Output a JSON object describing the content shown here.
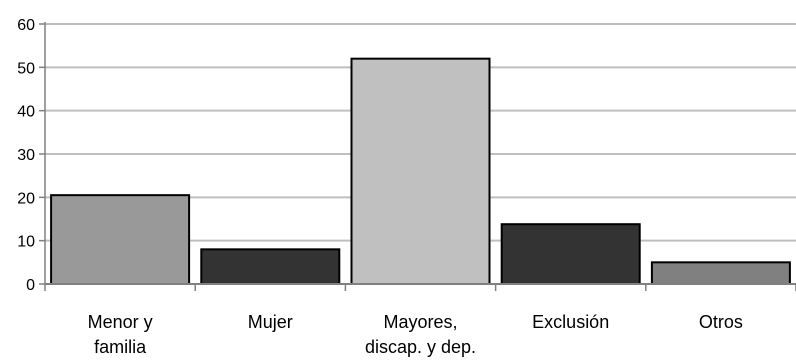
{
  "chart_data": {
    "type": "bar",
    "categories": [
      [
        "Menor y",
        "familia"
      ],
      [
        "Mujer"
      ],
      [
        "Mayores,",
        "discap. y dep."
      ],
      [
        "Exclusión"
      ],
      [
        "Otros"
      ]
    ],
    "values": [
      20.5,
      8,
      52,
      13.8,
      5
    ],
    "bar_colors": [
      "#999999",
      "#333333",
      "#c0c0c0",
      "#333333",
      "#808080"
    ],
    "bar_outline": "#000000",
    "ylim": [
      0,
      60
    ],
    "yticks": [
      "0",
      "10",
      "20",
      "30",
      "40",
      "50",
      "60"
    ],
    "grid": true,
    "grid_color": "#bfbfbf",
    "axis_color": "#808080",
    "title": "",
    "xlabel": "",
    "ylabel": ""
  }
}
